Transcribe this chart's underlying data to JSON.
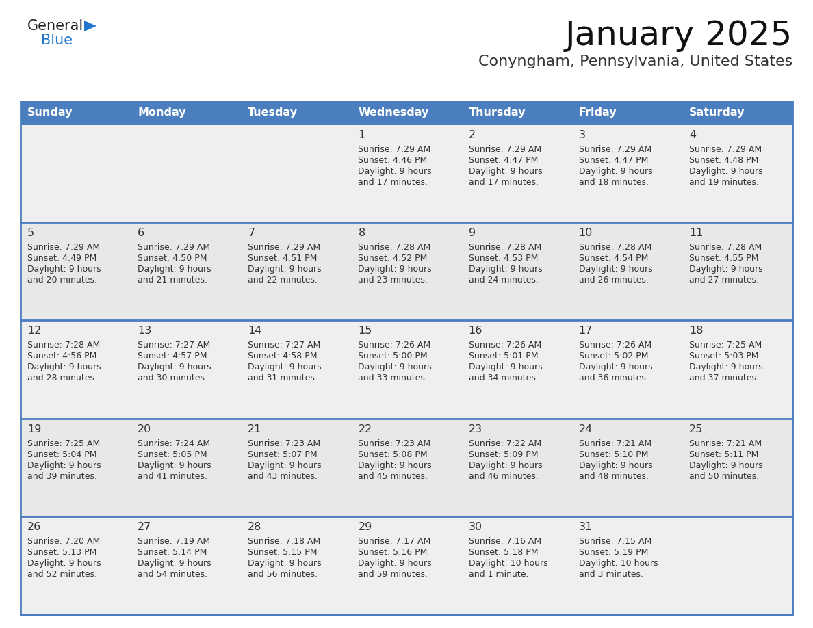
{
  "title": "January 2025",
  "subtitle": "Conyngham, Pennsylvania, United States",
  "header_color": "#4a7ebe",
  "header_text_color": "#FFFFFF",
  "cell_bg_odd": "#EFEFEF",
  "cell_bg_even": "#E8E8E8",
  "cell_bg_white": "#FFFFFF",
  "border_color": "#4a7ebe",
  "text_color": "#333333",
  "day_headers": [
    "Sunday",
    "Monday",
    "Tuesday",
    "Wednesday",
    "Thursday",
    "Friday",
    "Saturday"
  ],
  "days": [
    {
      "day": 1,
      "col": 3,
      "row": 0,
      "sunrise": "7:29 AM",
      "sunset": "4:46 PM",
      "daylight_h": "9 hours",
      "daylight_m": "17 minutes."
    },
    {
      "day": 2,
      "col": 4,
      "row": 0,
      "sunrise": "7:29 AM",
      "sunset": "4:47 PM",
      "daylight_h": "9 hours",
      "daylight_m": "17 minutes."
    },
    {
      "day": 3,
      "col": 5,
      "row": 0,
      "sunrise": "7:29 AM",
      "sunset": "4:47 PM",
      "daylight_h": "9 hours",
      "daylight_m": "18 minutes."
    },
    {
      "day": 4,
      "col": 6,
      "row": 0,
      "sunrise": "7:29 AM",
      "sunset": "4:48 PM",
      "daylight_h": "9 hours",
      "daylight_m": "19 minutes."
    },
    {
      "day": 5,
      "col": 0,
      "row": 1,
      "sunrise": "7:29 AM",
      "sunset": "4:49 PM",
      "daylight_h": "9 hours",
      "daylight_m": "20 minutes."
    },
    {
      "day": 6,
      "col": 1,
      "row": 1,
      "sunrise": "7:29 AM",
      "sunset": "4:50 PM",
      "daylight_h": "9 hours",
      "daylight_m": "21 minutes."
    },
    {
      "day": 7,
      "col": 2,
      "row": 1,
      "sunrise": "7:29 AM",
      "sunset": "4:51 PM",
      "daylight_h": "9 hours",
      "daylight_m": "22 minutes."
    },
    {
      "day": 8,
      "col": 3,
      "row": 1,
      "sunrise": "7:28 AM",
      "sunset": "4:52 PM",
      "daylight_h": "9 hours",
      "daylight_m": "23 minutes."
    },
    {
      "day": 9,
      "col": 4,
      "row": 1,
      "sunrise": "7:28 AM",
      "sunset": "4:53 PM",
      "daylight_h": "9 hours",
      "daylight_m": "24 minutes."
    },
    {
      "day": 10,
      "col": 5,
      "row": 1,
      "sunrise": "7:28 AM",
      "sunset": "4:54 PM",
      "daylight_h": "9 hours",
      "daylight_m": "26 minutes."
    },
    {
      "day": 11,
      "col": 6,
      "row": 1,
      "sunrise": "7:28 AM",
      "sunset": "4:55 PM",
      "daylight_h": "9 hours",
      "daylight_m": "27 minutes."
    },
    {
      "day": 12,
      "col": 0,
      "row": 2,
      "sunrise": "7:28 AM",
      "sunset": "4:56 PM",
      "daylight_h": "9 hours",
      "daylight_m": "28 minutes."
    },
    {
      "day": 13,
      "col": 1,
      "row": 2,
      "sunrise": "7:27 AM",
      "sunset": "4:57 PM",
      "daylight_h": "9 hours",
      "daylight_m": "30 minutes."
    },
    {
      "day": 14,
      "col": 2,
      "row": 2,
      "sunrise": "7:27 AM",
      "sunset": "4:58 PM",
      "daylight_h": "9 hours",
      "daylight_m": "31 minutes."
    },
    {
      "day": 15,
      "col": 3,
      "row": 2,
      "sunrise": "7:26 AM",
      "sunset": "5:00 PM",
      "daylight_h": "9 hours",
      "daylight_m": "33 minutes."
    },
    {
      "day": 16,
      "col": 4,
      "row": 2,
      "sunrise": "7:26 AM",
      "sunset": "5:01 PM",
      "daylight_h": "9 hours",
      "daylight_m": "34 minutes."
    },
    {
      "day": 17,
      "col": 5,
      "row": 2,
      "sunrise": "7:26 AM",
      "sunset": "5:02 PM",
      "daylight_h": "9 hours",
      "daylight_m": "36 minutes."
    },
    {
      "day": 18,
      "col": 6,
      "row": 2,
      "sunrise": "7:25 AM",
      "sunset": "5:03 PM",
      "daylight_h": "9 hours",
      "daylight_m": "37 minutes."
    },
    {
      "day": 19,
      "col": 0,
      "row": 3,
      "sunrise": "7:25 AM",
      "sunset": "5:04 PM",
      "daylight_h": "9 hours",
      "daylight_m": "39 minutes."
    },
    {
      "day": 20,
      "col": 1,
      "row": 3,
      "sunrise": "7:24 AM",
      "sunset": "5:05 PM",
      "daylight_h": "9 hours",
      "daylight_m": "41 minutes."
    },
    {
      "day": 21,
      "col": 2,
      "row": 3,
      "sunrise": "7:23 AM",
      "sunset": "5:07 PM",
      "daylight_h": "9 hours",
      "daylight_m": "43 minutes."
    },
    {
      "day": 22,
      "col": 3,
      "row": 3,
      "sunrise": "7:23 AM",
      "sunset": "5:08 PM",
      "daylight_h": "9 hours",
      "daylight_m": "45 minutes."
    },
    {
      "day": 23,
      "col": 4,
      "row": 3,
      "sunrise": "7:22 AM",
      "sunset": "5:09 PM",
      "daylight_h": "9 hours",
      "daylight_m": "46 minutes."
    },
    {
      "day": 24,
      "col": 5,
      "row": 3,
      "sunrise": "7:21 AM",
      "sunset": "5:10 PM",
      "daylight_h": "9 hours",
      "daylight_m": "48 minutes."
    },
    {
      "day": 25,
      "col": 6,
      "row": 3,
      "sunrise": "7:21 AM",
      "sunset": "5:11 PM",
      "daylight_h": "9 hours",
      "daylight_m": "50 minutes."
    },
    {
      "day": 26,
      "col": 0,
      "row": 4,
      "sunrise": "7:20 AM",
      "sunset": "5:13 PM",
      "daylight_h": "9 hours",
      "daylight_m": "52 minutes."
    },
    {
      "day": 27,
      "col": 1,
      "row": 4,
      "sunrise": "7:19 AM",
      "sunset": "5:14 PM",
      "daylight_h": "9 hours",
      "daylight_m": "54 minutes."
    },
    {
      "day": 28,
      "col": 2,
      "row": 4,
      "sunrise": "7:18 AM",
      "sunset": "5:15 PM",
      "daylight_h": "9 hours",
      "daylight_m": "56 minutes."
    },
    {
      "day": 29,
      "col": 3,
      "row": 4,
      "sunrise": "7:17 AM",
      "sunset": "5:16 PM",
      "daylight_h": "9 hours",
      "daylight_m": "59 minutes."
    },
    {
      "day": 30,
      "col": 4,
      "row": 4,
      "sunrise": "7:16 AM",
      "sunset": "5:18 PM",
      "daylight_h": "10 hours",
      "daylight_m": "1 minute."
    },
    {
      "day": 31,
      "col": 5,
      "row": 4,
      "sunrise": "7:15 AM",
      "sunset": "5:19 PM",
      "daylight_h": "10 hours",
      "daylight_m": "3 minutes."
    }
  ],
  "logo_general_color": "#222222",
  "logo_blue_color": "#2277CC",
  "logo_triangle_color": "#2277CC"
}
